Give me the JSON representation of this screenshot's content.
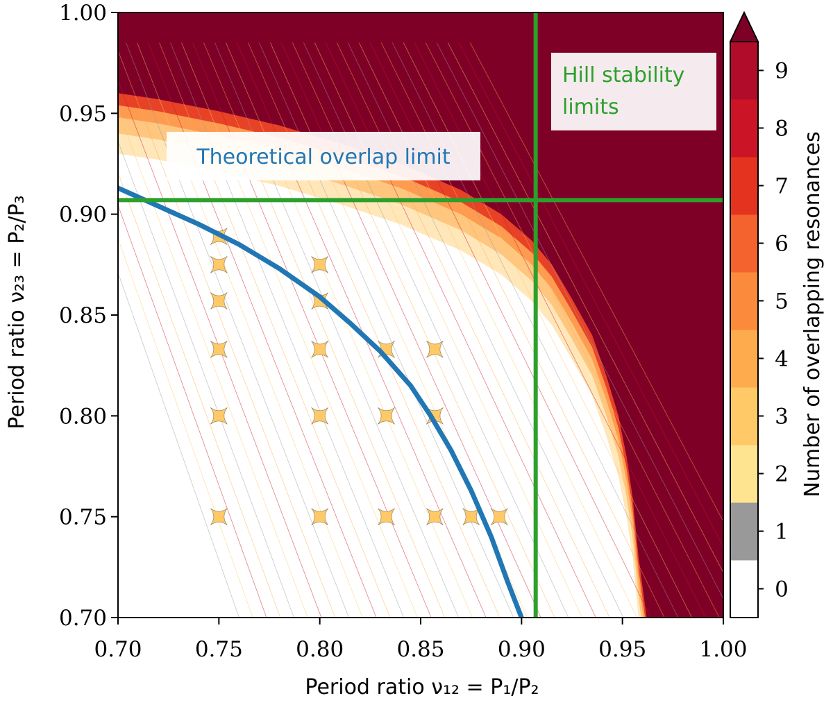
{
  "chart_data": {
    "type": "heatmap",
    "xlabel": "Period ratio ν₁₂ = P₁/P₂",
    "ylabel": "Period ratio ν₂₃ = P₂/P₃",
    "xlim": [
      0.7,
      1.0
    ],
    "ylim": [
      0.7,
      1.0
    ],
    "x_ticks": [
      0.7,
      0.75,
      0.8,
      0.85,
      0.9,
      0.95,
      1.0
    ],
    "x_tick_labels": [
      "0.70",
      "0.75",
      "0.80",
      "0.85",
      "0.90",
      "0.95",
      "1.00"
    ],
    "y_ticks": [
      0.7,
      0.75,
      0.8,
      0.85,
      0.9,
      0.95,
      1.0
    ],
    "y_tick_labels": [
      "0.70",
      "0.75",
      "0.80",
      "0.85",
      "0.90",
      "0.95",
      "1.00"
    ],
    "colorbar": {
      "label": "Number of overlapping resonances",
      "levels": [
        0,
        1,
        2,
        3,
        4,
        5,
        6,
        7,
        8,
        9
      ],
      "level_labels": [
        "0",
        "1",
        "2",
        "3",
        "4",
        "5",
        "6",
        "7",
        "8",
        "9"
      ],
      "colors": [
        "#ffffff",
        "#999999",
        "#fee391",
        "#fec966",
        "#fdab4c",
        "#fc8a3d",
        "#f4622e",
        "#e4331f",
        "#cc1427",
        "#b10c2a"
      ],
      "extend_color": "#7f0026",
      "extend": "max"
    },
    "chaotic_color": "#7f0026",
    "overlap_limit": {
      "label": "Theoretical overlap limit",
      "color": "#2177b4",
      "x": [
        0.7,
        0.72,
        0.74,
        0.76,
        0.78,
        0.8,
        0.815,
        0.83,
        0.845,
        0.855,
        0.865,
        0.875,
        0.885,
        0.893,
        0.9
      ],
      "y": [
        0.913,
        0.904,
        0.895,
        0.885,
        0.873,
        0.859,
        0.846,
        0.832,
        0.815,
        0.8,
        0.783,
        0.763,
        0.74,
        0.718,
        0.7
      ]
    },
    "hill_limits": {
      "label": "Hill stability limits",
      "color": "#2ca02c",
      "x": 0.907,
      "y": 0.907
    },
    "stability_boundary": {
      "x": [
        0.7,
        0.72,
        0.75,
        0.78,
        0.81,
        0.84,
        0.87,
        0.89,
        0.905,
        0.915,
        0.925,
        0.935,
        0.942,
        0.948,
        0.952,
        0.955,
        0.958,
        0.962
      ],
      "y": [
        0.96,
        0.957,
        0.951,
        0.944,
        0.935,
        0.925,
        0.912,
        0.9,
        0.887,
        0.875,
        0.858,
        0.84,
        0.82,
        0.8,
        0.78,
        0.76,
        0.73,
        0.7
      ]
    },
    "resonance_crossings": [
      [
        0.75,
        0.889
      ],
      [
        0.75,
        0.875
      ],
      [
        0.75,
        0.857
      ],
      [
        0.75,
        0.833
      ],
      [
        0.75,
        0.8
      ],
      [
        0.75,
        0.75
      ],
      [
        0.8,
        0.875
      ],
      [
        0.8,
        0.857
      ],
      [
        0.8,
        0.833
      ],
      [
        0.8,
        0.8
      ],
      [
        0.8,
        0.75
      ],
      [
        0.833,
        0.833
      ],
      [
        0.833,
        0.8
      ],
      [
        0.833,
        0.75
      ],
      [
        0.857,
        0.833
      ],
      [
        0.857,
        0.8
      ],
      [
        0.857,
        0.75
      ],
      [
        0.875,
        0.75
      ],
      [
        0.889,
        0.75
      ]
    ]
  }
}
